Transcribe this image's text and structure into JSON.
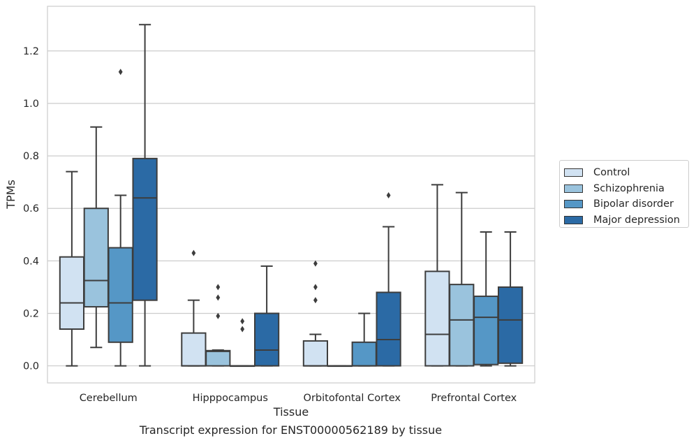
{
  "chart_data": {
    "type": "boxplot",
    "title": "",
    "caption": "Transcript expression for ENST00000562189 by tissue",
    "xlabel": "Tissue",
    "ylabel": "TPMs",
    "ylim": [
      -0.065,
      1.37
    ],
    "yticks": [
      "0.0",
      "0.2",
      "0.4",
      "0.6",
      "0.8",
      "1.0",
      "1.2"
    ],
    "grid": "horizontal",
    "legend_position": "right",
    "categories": [
      "Cerebellum",
      "Hipppocampus",
      "Orbitofontal Cortex",
      "Prefrontal Cortex"
    ],
    "series": [
      {
        "name": "Control",
        "color": "#d1e2f2",
        "boxes": [
          {
            "whislo": 0.0,
            "q1": 0.14,
            "med": 0.24,
            "q3": 0.415,
            "whishi": 0.74,
            "fliers": []
          },
          {
            "whislo": 0.0,
            "q1": 0.0,
            "med": 0.0,
            "q3": 0.125,
            "whishi": 0.25,
            "fliers": [
              0.43
            ]
          },
          {
            "whislo": 0.0,
            "q1": 0.0,
            "med": 0.0,
            "q3": 0.095,
            "whishi": 0.12,
            "fliers": [
              0.25,
              0.3,
              0.39
            ]
          },
          {
            "whislo": 0.0,
            "q1": 0.0,
            "med": 0.12,
            "q3": 0.36,
            "whishi": 0.69,
            "fliers": []
          }
        ]
      },
      {
        "name": "Schizophrenia",
        "color": "#9ac3dd",
        "boxes": [
          {
            "whislo": 0.07,
            "q1": 0.225,
            "med": 0.325,
            "q3": 0.6,
            "whishi": 0.91,
            "fliers": []
          },
          {
            "whislo": 0.0,
            "q1": 0.0,
            "med": 0.055,
            "q3": 0.058,
            "whishi": 0.06,
            "fliers": [
              0.19,
              0.26,
              0.3
            ]
          },
          {
            "whislo": 0.0,
            "q1": 0.0,
            "med": 0.0,
            "q3": 0.0,
            "whishi": 0.0,
            "fliers": []
          },
          {
            "whislo": 0.0,
            "q1": 0.0,
            "med": 0.175,
            "q3": 0.31,
            "whishi": 0.66,
            "fliers": []
          }
        ]
      },
      {
        "name": "Bipolar disorder",
        "color": "#5597c6",
        "boxes": [
          {
            "whislo": 0.0,
            "q1": 0.09,
            "med": 0.24,
            "q3": 0.45,
            "whishi": 0.65,
            "fliers": [
              1.12
            ]
          },
          {
            "whislo": 0.0,
            "q1": 0.0,
            "med": 0.0,
            "q3": 0.0,
            "whishi": 0.0,
            "fliers": [
              0.14,
              0.17
            ]
          },
          {
            "whislo": 0.0,
            "q1": 0.0,
            "med": 0.0,
            "q3": 0.09,
            "whishi": 0.2,
            "fliers": []
          },
          {
            "whislo": 0.0,
            "q1": 0.005,
            "med": 0.185,
            "q3": 0.265,
            "whishi": 0.51,
            "fliers": []
          }
        ]
      },
      {
        "name": "Major depression",
        "color": "#2b6aa5",
        "boxes": [
          {
            "whislo": 0.0,
            "q1": 0.25,
            "med": 0.64,
            "q3": 0.79,
            "whishi": 1.3,
            "fliers": []
          },
          {
            "whislo": 0.0,
            "q1": 0.0,
            "med": 0.06,
            "q3": 0.2,
            "whishi": 0.38,
            "fliers": []
          },
          {
            "whislo": 0.0,
            "q1": 0.0,
            "med": 0.1,
            "q3": 0.28,
            "whishi": 0.53,
            "fliers": [
              0.65
            ]
          },
          {
            "whislo": 0.0,
            "q1": 0.01,
            "med": 0.175,
            "q3": 0.3,
            "whishi": 0.51,
            "fliers": []
          }
        ]
      }
    ]
  }
}
